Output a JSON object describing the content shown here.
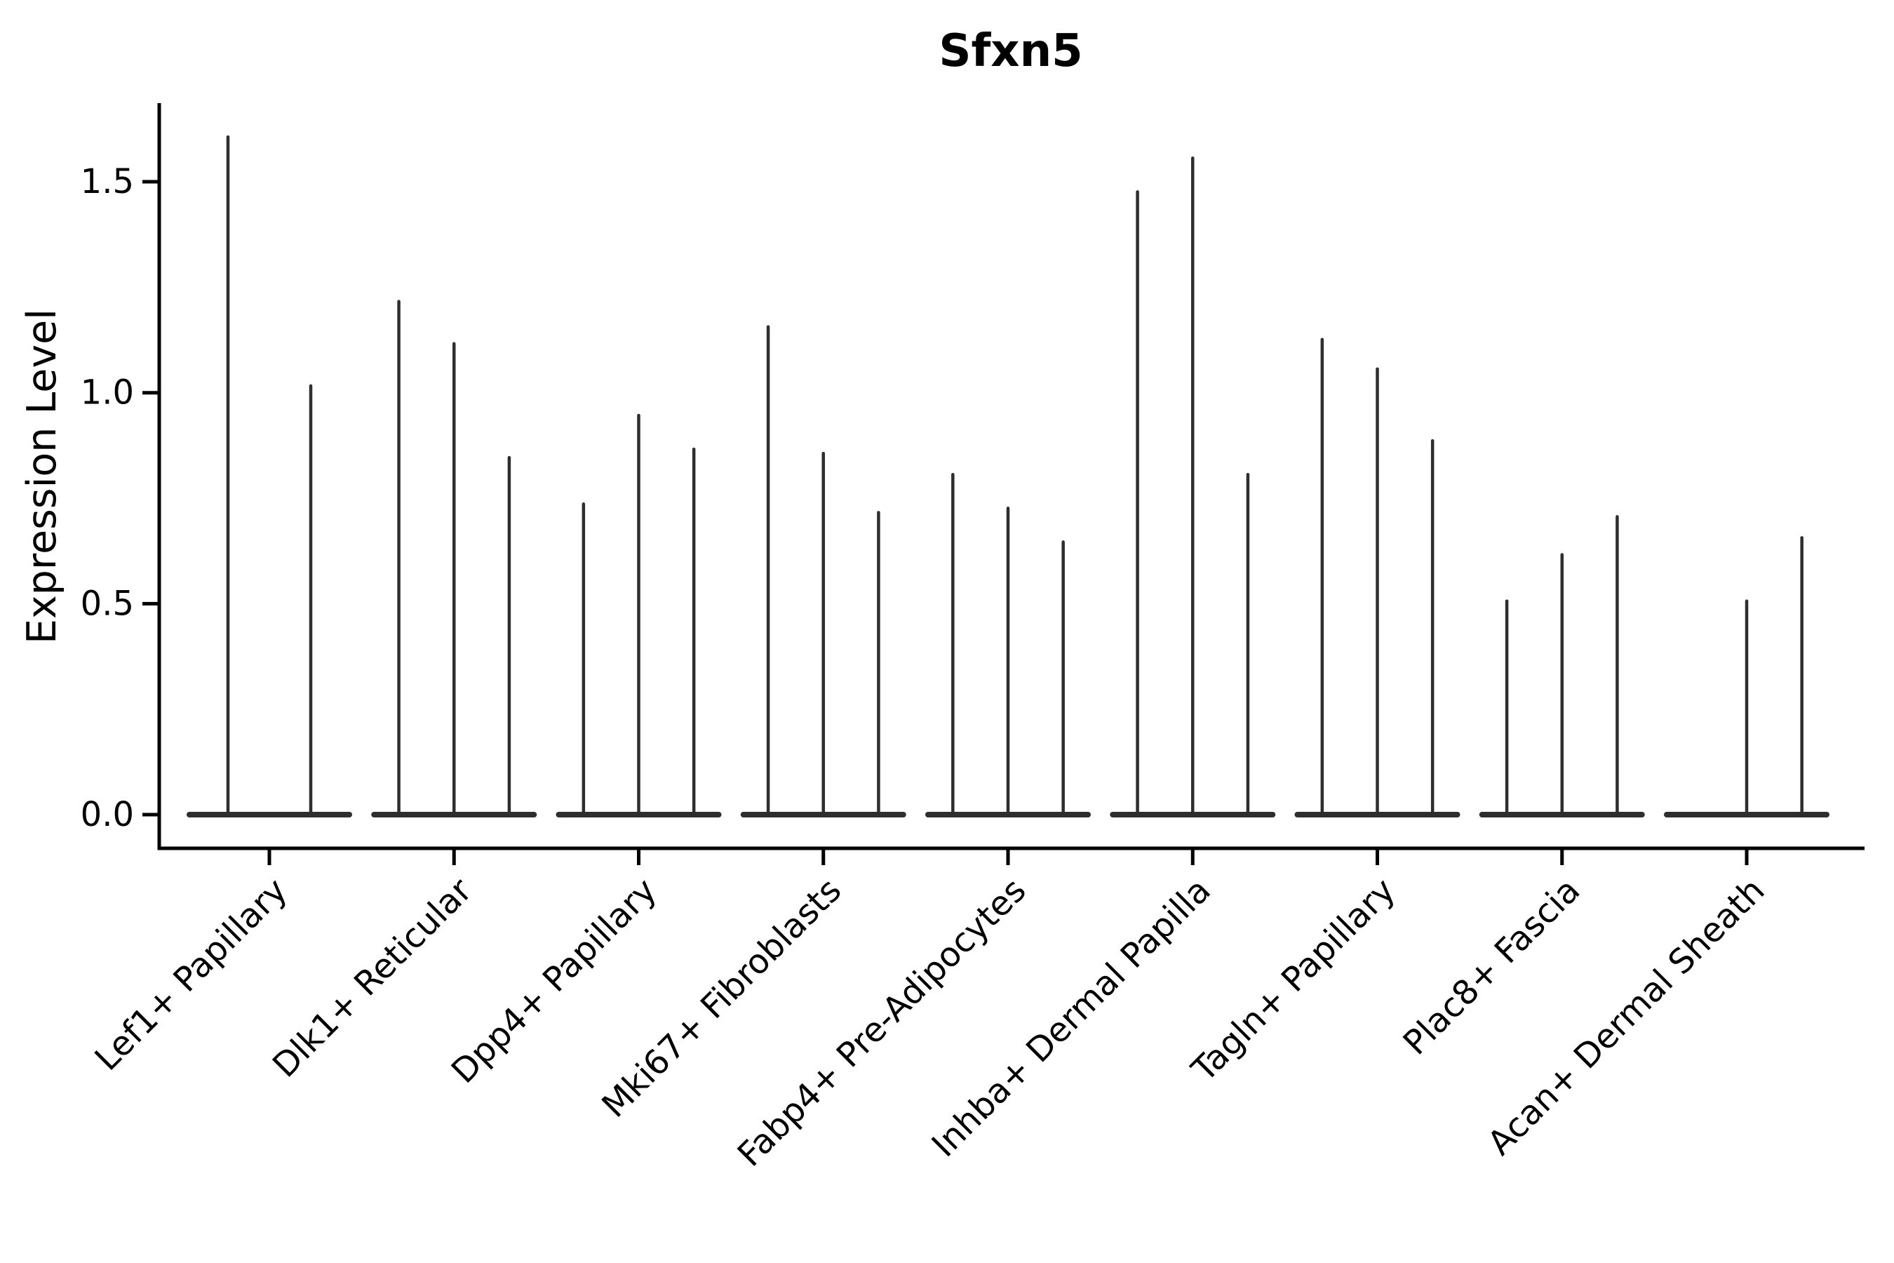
{
  "chart_data": {
    "type": "violin",
    "title": "Sfxn5",
    "ylabel": "Expression Level",
    "xlabel": "",
    "grid": false,
    "legend": null,
    "ylim": [
      -0.08,
      1.69
    ],
    "yticks": [
      0.0,
      0.5,
      1.0,
      1.5
    ],
    "ytick_labels": [
      "0.0",
      "0.5",
      "1.0",
      "1.5"
    ],
    "categories": [
      "Lef1+ Papillary",
      "Dlk1+ Reticular",
      "Dpp4+ Papillary",
      "Mki67+ Fibroblasts",
      "Fabp4+ Pre-Adipocytes",
      "Inhba+ Dermal Papilla",
      "Tagln+ Papillary",
      "Plac8+ Fascia",
      "Acan+ Dermal Sheath"
    ],
    "series": [
      {
        "category": "Lef1+ Papillary",
        "violin_maxima": [
          1.61,
          1.02
        ]
      },
      {
        "category": "Dlk1+ Reticular",
        "violin_maxima": [
          1.22,
          1.12,
          0.85
        ]
      },
      {
        "category": "Dpp4+ Papillary",
        "violin_maxima": [
          0.74,
          0.95,
          0.87
        ]
      },
      {
        "category": "Mki67+ Fibroblasts",
        "violin_maxima": [
          1.16,
          0.86,
          0.72
        ]
      },
      {
        "category": "Fabp4+ Pre-Adipocytes",
        "violin_maxima": [
          0.81,
          0.73,
          0.65
        ]
      },
      {
        "category": "Inhba+ Dermal Papilla",
        "violin_maxima": [
          1.48,
          1.56,
          0.81
        ]
      },
      {
        "category": "Tagln+ Papillary",
        "violin_maxima": [
          1.13,
          1.06,
          0.89
        ]
      },
      {
        "category": "Plac8+ Fascia",
        "violin_maxima": [
          0.51,
          0.62,
          0.71
        ]
      },
      {
        "category": "Acan+ Dermal Sheath",
        "violin_maxima": [
          0.02,
          0.51,
          0.66
        ]
      }
    ],
    "description": "Violin plot of Sfxn5 expression; each category shows very thin violins (spikes) with mass concentrated at 0 and a thin tail up to the listed maximum expression value.",
    "colors": {
      "violin": "#2e2e2e",
      "axis": "#000000",
      "text": "#000000",
      "background": "#ffffff"
    }
  }
}
